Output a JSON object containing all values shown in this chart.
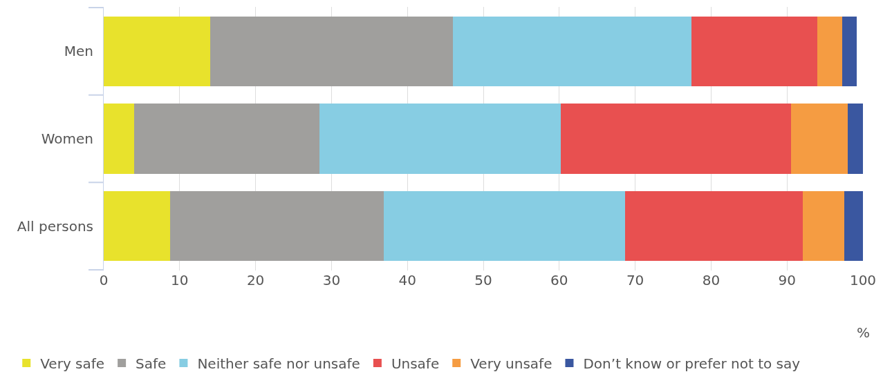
{
  "chart_data": {
    "type": "bar",
    "orientation": "horizontal",
    "stacked": true,
    "categories": [
      "Men",
      "Women",
      "All persons"
    ],
    "series": [
      {
        "name": "Very safe",
        "color": "#e8e22c",
        "values": [
          14,
          4,
          8.7
        ]
      },
      {
        "name": "Safe",
        "color": "#a09f9d",
        "values": [
          32,
          24.4,
          28.2
        ]
      },
      {
        "name": "Neither safe nor unsafe",
        "color": "#87cde3",
        "values": [
          31.4,
          31.8,
          31.8
        ]
      },
      {
        "name": "Unsafe",
        "color": "#e85050",
        "values": [
          16.6,
          30.3,
          23.4
        ]
      },
      {
        "name": "Very unsafe",
        "color": "#f59c42",
        "values": [
          3.3,
          7.5,
          5.4
        ]
      },
      {
        "name": "Don’t know or prefer not to say",
        "color": "#3a57a0",
        "values": [
          1.9,
          2.0,
          2.5
        ]
      }
    ],
    "xlabel": "%",
    "xlim": [
      0,
      100
    ],
    "xticks": [
      0,
      10,
      20,
      30,
      40,
      50,
      60,
      70,
      80,
      90,
      100
    ],
    "grid": "x",
    "legend": "bottom"
  }
}
